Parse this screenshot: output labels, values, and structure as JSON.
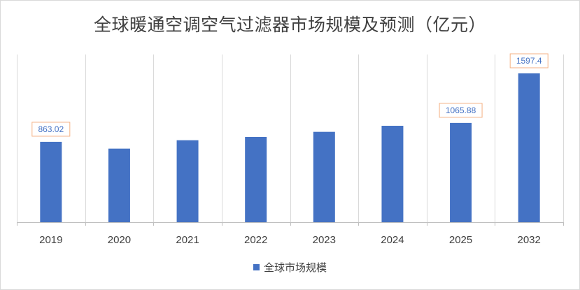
{
  "title": "全球暖通空调空气过滤器市场规模及预测（亿元）",
  "colors": {
    "bar": "#4472c4",
    "label_border": "#f4b183",
    "grid": "#d9d9d9",
    "axis": "#bfbfbf"
  },
  "chart_data": {
    "type": "bar",
    "title": "全球暖通空调空气过滤器市场规模及预测（亿元）",
    "xlabel": "",
    "ylabel": "",
    "ylim": [
      0,
      1800
    ],
    "grid": "vertical category separators",
    "legend_position": "bottom",
    "categories": [
      "2019",
      "2020",
      "2021",
      "2022",
      "2023",
      "2024",
      "2025",
      "2032"
    ],
    "series": [
      {
        "name": "全球市场规模",
        "values": [
          863.02,
          790,
          880,
          915,
          970,
          1035,
          1065.88,
          1597.4
        ],
        "data_labels": [
          "863.02",
          null,
          null,
          null,
          null,
          null,
          "1065.88",
          "1597.4"
        ]
      }
    ]
  }
}
